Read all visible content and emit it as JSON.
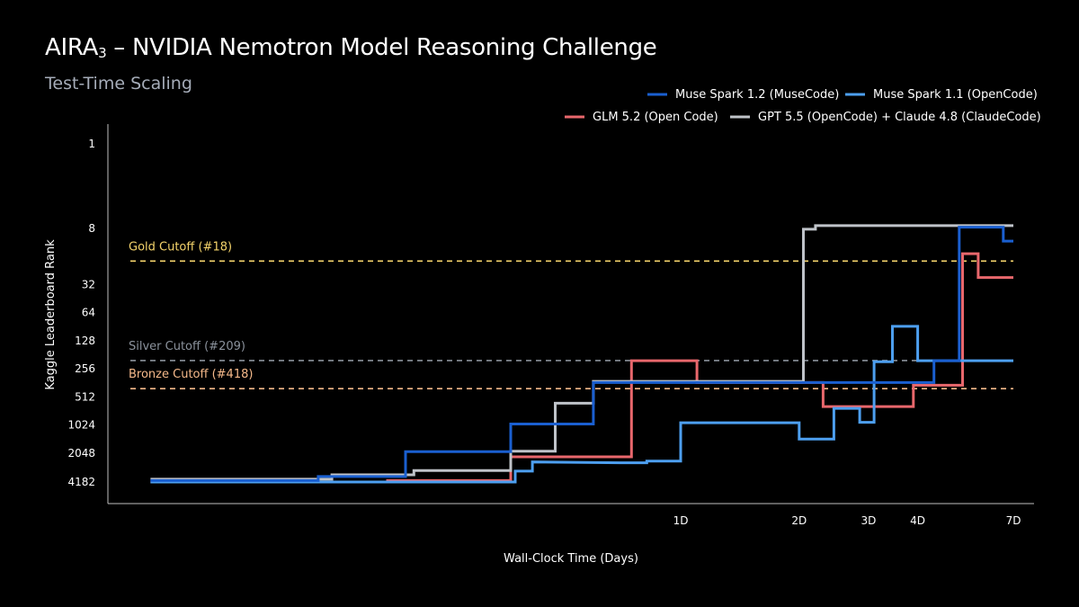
{
  "header": {
    "title_main": "AIRA",
    "title_sub": "3",
    "title_rest": " – NVIDIA Nemotron Model Reasoning Challenge",
    "subtitle": "Test-Time Scaling"
  },
  "chart_data": {
    "type": "line",
    "title": "AIRA₃ – NVIDIA Nemotron Model Reasoning Challenge",
    "subtitle": "Test-Time Scaling",
    "xlabel": "Wall-Clock Time (Days)",
    "ylabel": "Kaggle Leaderboard Rank",
    "x_scale": "log",
    "y_scale": "log-inverted",
    "x_ticks": [
      {
        "value": 1,
        "label": "1D"
      },
      {
        "value": 2,
        "label": "2D"
      },
      {
        "value": 3,
        "label": "3D"
      },
      {
        "value": 4,
        "label": "4D"
      },
      {
        "value": 7,
        "label": "7D"
      }
    ],
    "y_ticks": [
      1,
      8,
      32,
      64,
      128,
      256,
      512,
      1024,
      2048,
      4182
    ],
    "xlim": [
      0.04,
      7
    ],
    "ylim": [
      4182,
      1
    ],
    "legend_position": "top-right",
    "reference_lines": [
      {
        "label": "Gold Cutoff (#18)",
        "rank": 18,
        "color": "#f4d36b"
      },
      {
        "label": "Silver Cutoff (#209)",
        "rank": 209,
        "color": "#8b929c"
      },
      {
        "label": "Bronze Cutoff (#418)",
        "rank": 418,
        "color": "#f5b98a"
      }
    ],
    "series": [
      {
        "name": "Muse Spark 1.2 (MuseCode)",
        "color": "#1a5fd0",
        "points": [
          [
            0.045,
            4040
          ],
          [
            0.12,
            4040
          ],
          [
            0.12,
            3650
          ],
          [
            0.2,
            3650
          ],
          [
            0.2,
            1980
          ],
          [
            0.37,
            1980
          ],
          [
            0.37,
            1000
          ],
          [
            0.6,
            1000
          ],
          [
            0.6,
            360
          ],
          [
            2.3,
            360
          ],
          [
            2.3,
            360
          ],
          [
            4.4,
            360
          ],
          [
            4.4,
            210
          ],
          [
            5.1,
            210
          ],
          [
            5.1,
            7.8
          ],
          [
            6.6,
            7.8
          ],
          [
            6.6,
            11
          ],
          [
            7,
            11
          ]
        ]
      },
      {
        "name": "Muse Spark 1.1 (OpenCode)",
        "color": "#4d9ff0",
        "points": [
          [
            0.045,
            4182
          ],
          [
            0.3,
            4182
          ],
          [
            0.38,
            4182
          ],
          [
            0.38,
            3200
          ],
          [
            0.42,
            3200
          ],
          [
            0.42,
            2550
          ],
          [
            0.7,
            2600
          ],
          [
            0.82,
            2600
          ],
          [
            0.82,
            2500
          ],
          [
            1.0,
            2500
          ],
          [
            1.0,
            970
          ],
          [
            2.0,
            970
          ],
          [
            2.0,
            1450
          ],
          [
            2.45,
            1450
          ],
          [
            2.45,
            680
          ],
          [
            2.85,
            680
          ],
          [
            2.85,
            960
          ],
          [
            3.1,
            960
          ],
          [
            3.1,
            215
          ],
          [
            3.45,
            215
          ],
          [
            3.45,
            90
          ],
          [
            4.0,
            90
          ],
          [
            4.0,
            210
          ],
          [
            7,
            210
          ]
        ]
      },
      {
        "name": "GLM 5.2 (Open Code)",
        "color": "#e8676c",
        "points": [
          [
            0.045,
            4182
          ],
          [
            0.18,
            4182
          ],
          [
            0.18,
            4040
          ],
          [
            0.37,
            4040
          ],
          [
            0.37,
            2250
          ],
          [
            0.75,
            2250
          ],
          [
            0.75,
            210
          ],
          [
            1.1,
            210
          ],
          [
            1.1,
            360
          ],
          [
            2.3,
            360
          ],
          [
            2.3,
            650
          ],
          [
            3.9,
            650
          ],
          [
            3.9,
            385
          ],
          [
            5.2,
            385
          ],
          [
            5.2,
            15
          ],
          [
            5.7,
            15
          ],
          [
            5.7,
            27
          ],
          [
            7,
            27
          ]
        ]
      },
      {
        "name": "GPT 5.5 (OpenCode) + Claude 4.8 (ClaudeCode)",
        "color": "#bfc3c9",
        "points": [
          [
            0.045,
            3900
          ],
          [
            0.13,
            3900
          ],
          [
            0.13,
            3500
          ],
          [
            0.21,
            3500
          ],
          [
            0.21,
            3150
          ],
          [
            0.37,
            3150
          ],
          [
            0.37,
            1960
          ],
          [
            0.48,
            1960
          ],
          [
            0.48,
            600
          ],
          [
            0.6,
            600
          ],
          [
            0.6,
            350
          ],
          [
            2.05,
            350
          ],
          [
            2.05,
            8.2
          ],
          [
            2.2,
            8.2
          ],
          [
            2.2,
            7.5
          ],
          [
            7,
            7.5
          ]
        ]
      }
    ]
  },
  "legend": [
    {
      "label": "Muse Spark 1.2 (MuseCode)",
      "color": "#1a5fd0"
    },
    {
      "label": "Muse Spark 1.1 (OpenCode)",
      "color": "#4d9ff0"
    },
    {
      "label": "GLM 5.2 (Open Code)",
      "color": "#e8676c"
    },
    {
      "label": "GPT 5.5 (OpenCode) + Claude 4.8 (ClaudeCode)",
      "color": "#bfc3c9"
    }
  ]
}
